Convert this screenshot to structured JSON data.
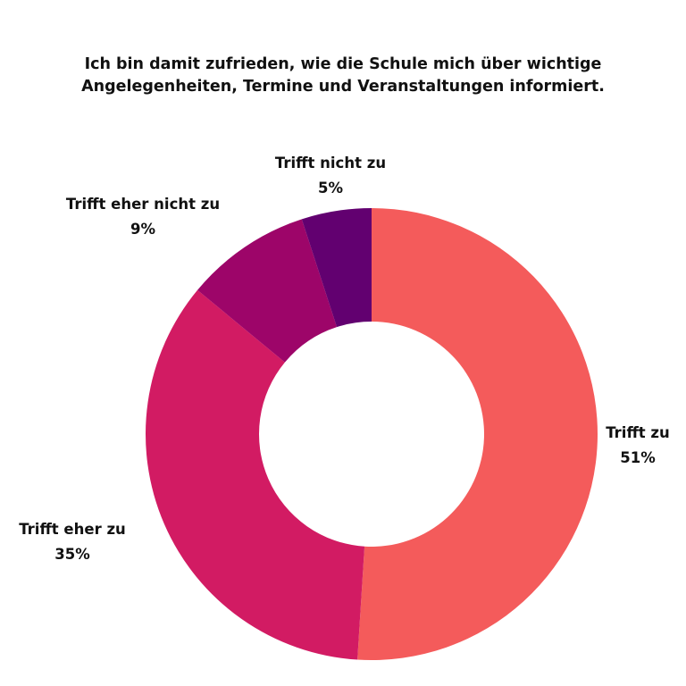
{
  "chart_data": {
    "type": "pie",
    "variant": "donut",
    "title_lines": [
      "Ich bin damit zufrieden, wie die Schule mich über wichtige",
      "Angelegenheiten, Termine und Veranstaltungen informiert."
    ],
    "slices": [
      {
        "label": "Trifft zu",
        "value": 51,
        "value_label": "51%",
        "color": "#f45b5b"
      },
      {
        "label": "Trifft eher zu",
        "value": 35,
        "value_label": "35%",
        "color": "#d21b63"
      },
      {
        "label": "Trifft eher nicht zu",
        "value": 9,
        "value_label": "9%",
        "color": "#9d0569"
      },
      {
        "label": "Trifft nicht zu",
        "value": 5,
        "value_label": "5%",
        "color": "#620070"
      }
    ]
  }
}
